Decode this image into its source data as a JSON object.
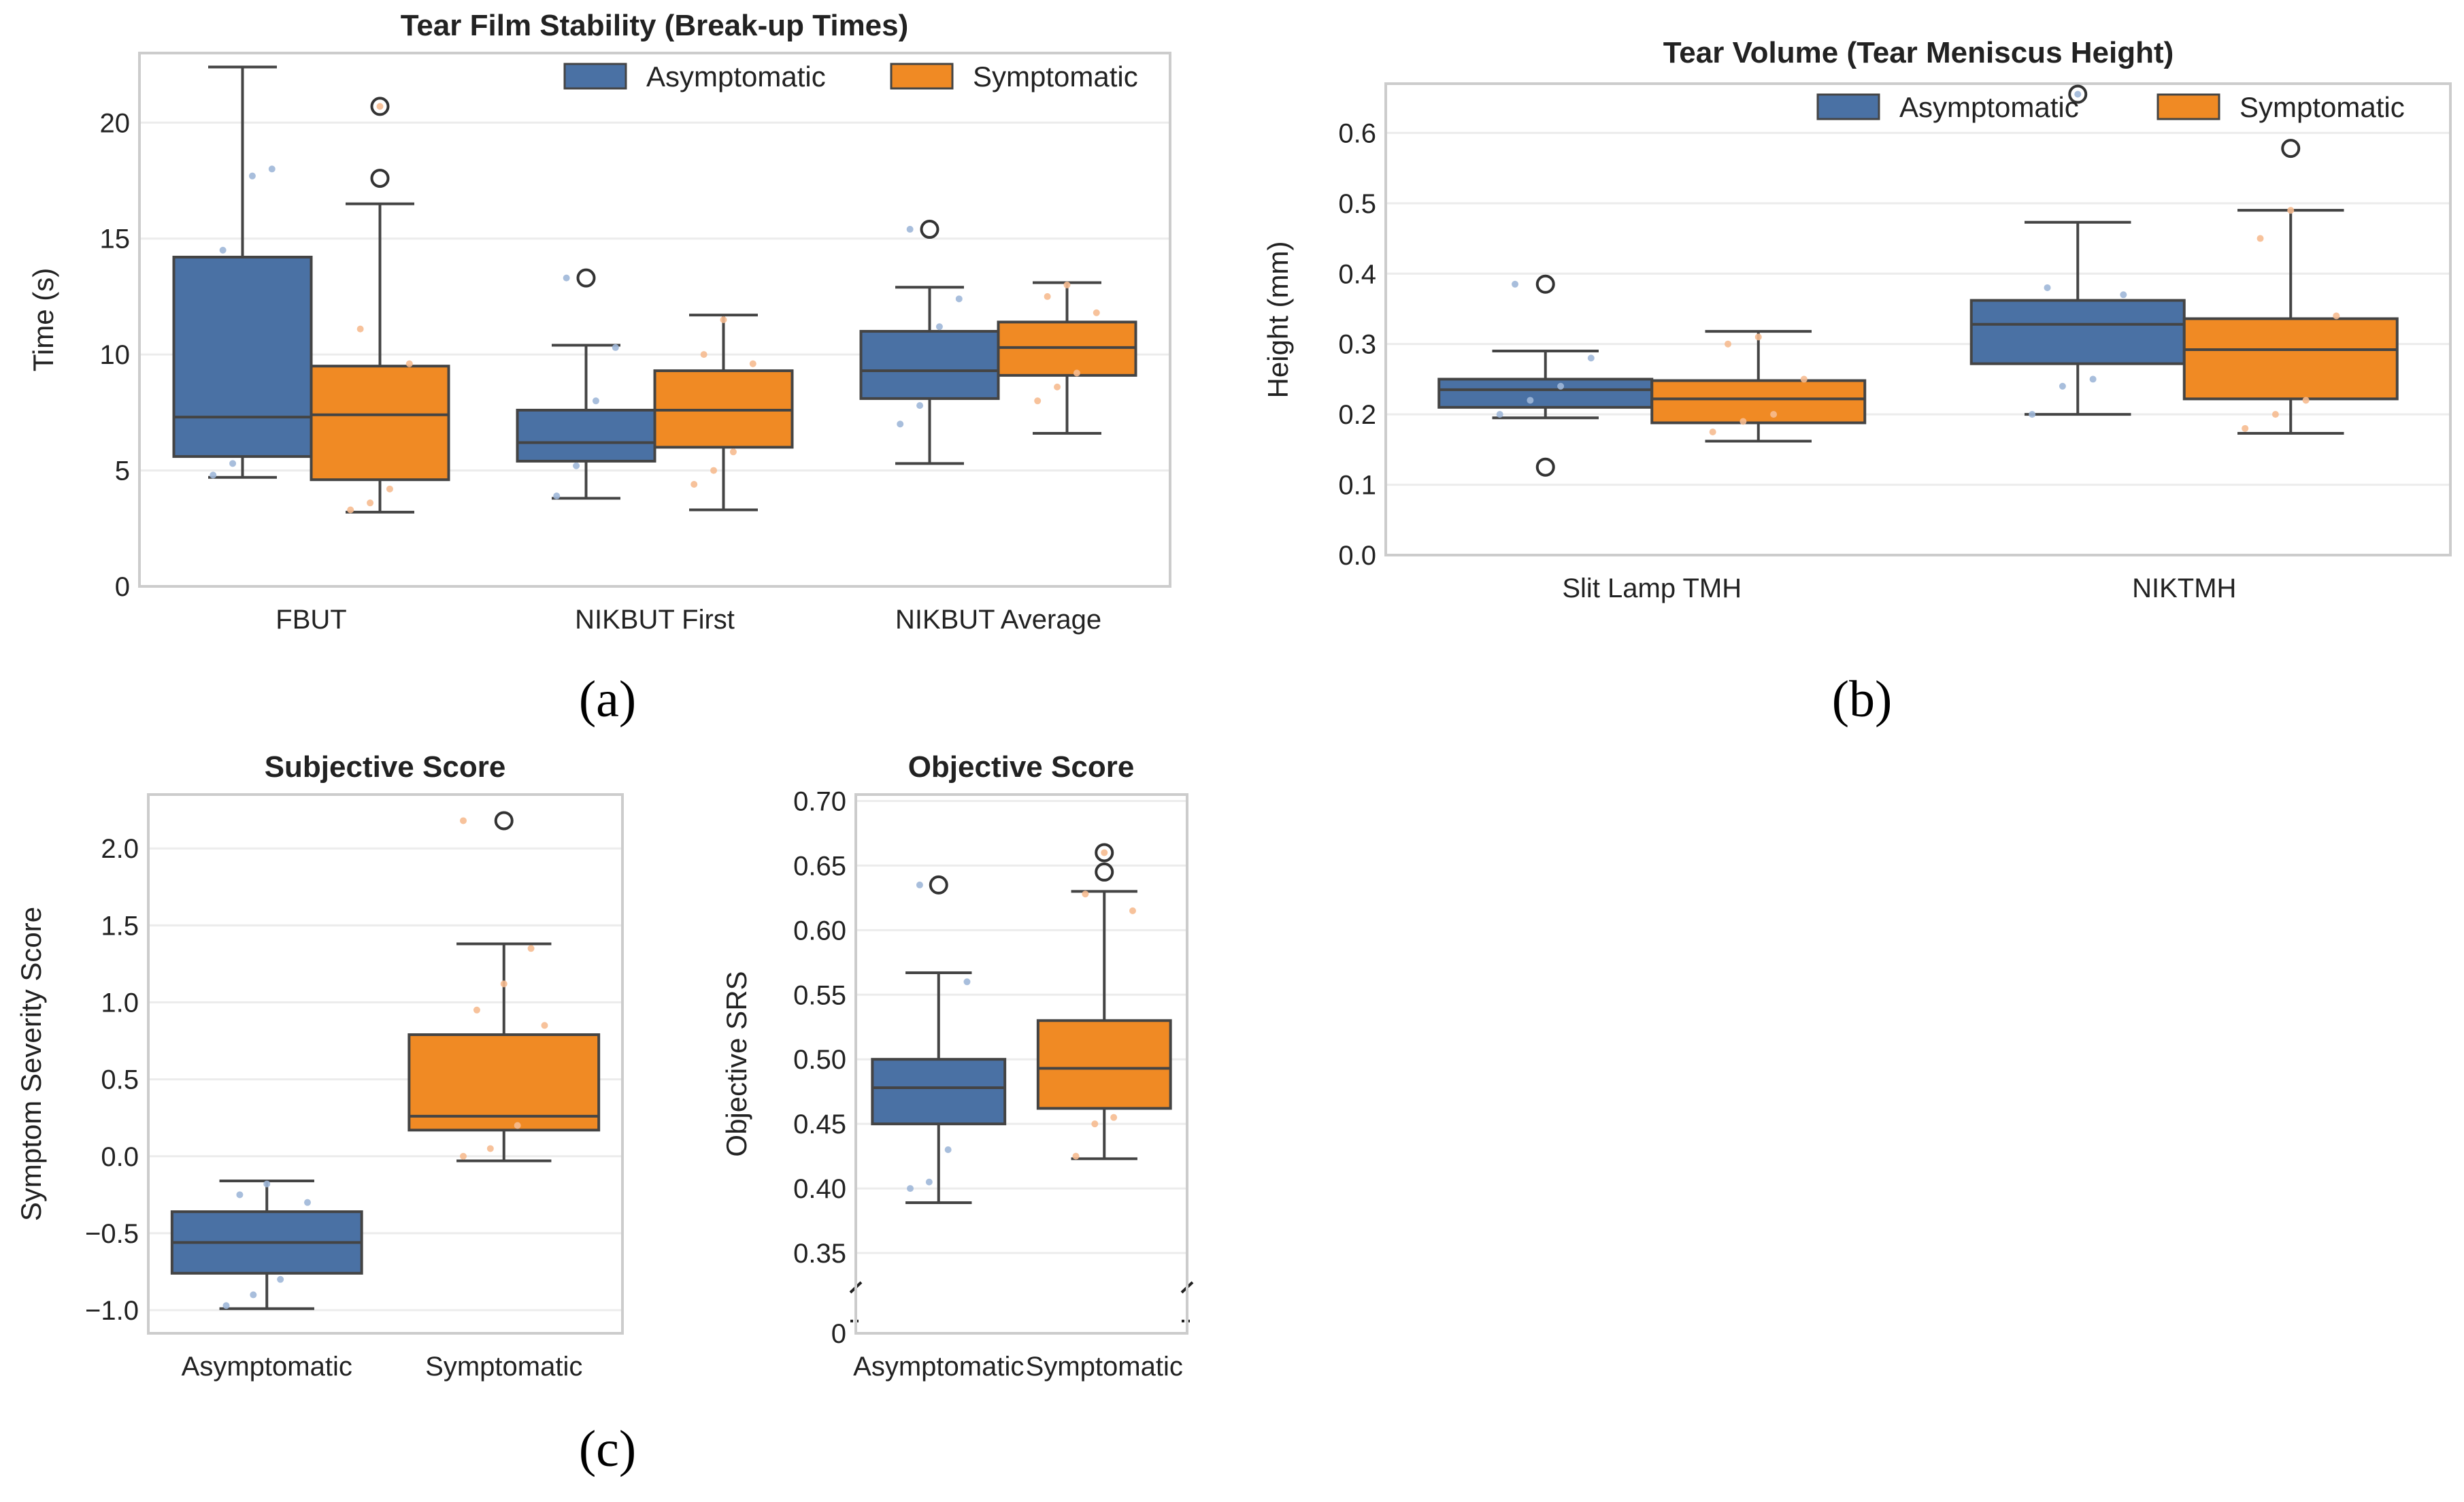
{
  "colors": {
    "asymptomatic": "#4a71a4",
    "symptomatic": "#f08a24",
    "asymptomatic_light": "#9fb7d8",
    "symptomatic_light": "#f6bb90",
    "frame": "#cccccc",
    "grid": "#ececec",
    "whisker": "#444444"
  },
  "chart_data": [
    {
      "id": "a",
      "type": "box",
      "title": "Tear Film Stability (Break-up Times)",
      "xlabel": "",
      "ylabel": "Time (s)",
      "ylim": [
        0,
        23
      ],
      "yticks": [
        0,
        5,
        10,
        15,
        20
      ],
      "yticklabels": [
        "0",
        "5",
        "10",
        "15",
        "20"
      ],
      "grid": true,
      "legend": "top-right",
      "categories": [
        "FBUT",
        "NIKBUT First",
        "NIKBUT Average"
      ],
      "series": [
        {
          "name": "Asymptomatic",
          "boxes": [
            {
              "whislo": 4.7,
              "q1": 5.6,
              "med": 7.3,
              "q3": 14.2,
              "whishi": 22.4,
              "fliers": [],
              "points": [
                4.8,
                5.3,
                17.7,
                18.0,
                14.5
              ]
            },
            {
              "whislo": 3.8,
              "q1": 5.4,
              "med": 6.2,
              "q3": 7.6,
              "whishi": 10.4,
              "fliers": [
                13.3
              ],
              "points": [
                3.9,
                5.2,
                8.0,
                10.3,
                13.3
              ]
            },
            {
              "whislo": 5.3,
              "q1": 8.1,
              "med": 9.3,
              "q3": 11.0,
              "whishi": 12.9,
              "fliers": [
                15.4
              ],
              "points": [
                7.0,
                7.8,
                11.2,
                12.4,
                15.4
              ]
            }
          ]
        },
        {
          "name": "Symptomatic",
          "boxes": [
            {
              "whislo": 3.2,
              "q1": 4.6,
              "med": 7.4,
              "q3": 9.5,
              "whishi": 16.5,
              "fliers": [
                17.6,
                20.7
              ],
              "points": [
                3.3,
                3.6,
                4.2,
                9.6,
                11.1,
                20.7
              ]
            },
            {
              "whislo": 3.3,
              "q1": 6.0,
              "med": 7.6,
              "q3": 9.3,
              "whishi": 11.7,
              "fliers": [],
              "points": [
                4.4,
                5.0,
                5.8,
                9.6,
                10.0,
                11.5
              ]
            },
            {
              "whislo": 6.6,
              "q1": 9.1,
              "med": 10.3,
              "q3": 11.4,
              "whishi": 13.1,
              "fliers": [],
              "points": [
                8.0,
                8.6,
                9.2,
                11.8,
                12.5,
                13.0
              ]
            }
          ]
        }
      ]
    },
    {
      "id": "b",
      "type": "box",
      "title": "Tear Volume (Tear Meniscus Height)",
      "xlabel": "",
      "ylabel": "Height (mm)",
      "ylim": [
        0,
        0.67
      ],
      "yticks": [
        0,
        0.1,
        0.2,
        0.3,
        0.4,
        0.5,
        0.6
      ],
      "yticklabels": [
        "0.0",
        "0.1",
        "0.2",
        "0.3",
        "0.4",
        "0.5",
        "0.6"
      ],
      "grid": true,
      "legend": "top-right",
      "categories": [
        "Slit Lamp TMH",
        "NIKTMH"
      ],
      "series": [
        {
          "name": "Asymptomatic",
          "boxes": [
            {
              "whislo": 0.195,
              "q1": 0.21,
              "med": 0.235,
              "q3": 0.25,
              "whishi": 0.29,
              "fliers": [
                0.125,
                0.385
              ],
              "points": [
                0.2,
                0.22,
                0.24,
                0.28,
                0.385
              ]
            },
            {
              "whislo": 0.2,
              "q1": 0.272,
              "med": 0.328,
              "q3": 0.362,
              "whishi": 0.473,
              "fliers": [
                0.655
              ],
              "points": [
                0.2,
                0.24,
                0.25,
                0.37,
                0.38,
                0.655
              ]
            }
          ]
        },
        {
          "name": "Symptomatic",
          "boxes": [
            {
              "whislo": 0.162,
              "q1": 0.188,
              "med": 0.222,
              "q3": 0.248,
              "whishi": 0.318,
              "fliers": [],
              "points": [
                0.175,
                0.19,
                0.2,
                0.25,
                0.3,
                0.31
              ]
            },
            {
              "whislo": 0.173,
              "q1": 0.222,
              "med": 0.292,
              "q3": 0.336,
              "whishi": 0.49,
              "fliers": [
                0.578
              ],
              "points": [
                0.18,
                0.2,
                0.22,
                0.34,
                0.45,
                0.49
              ]
            }
          ]
        }
      ]
    },
    {
      "id": "c1",
      "type": "box",
      "title": "Subjective Score",
      "xlabel": "",
      "ylabel": "Symptom Severity Score",
      "ylim": [
        -1.15,
        2.35
      ],
      "yticks": [
        -1.0,
        -0.5,
        0.0,
        0.5,
        1.0,
        1.5,
        2.0
      ],
      "yticklabels": [
        "−1.0",
        "−0.5",
        "0.0",
        "0.5",
        "1.0",
        "1.5",
        "2.0"
      ],
      "grid": true,
      "categories": [
        "Asymptomatic",
        "Symptomatic"
      ],
      "series": [
        {
          "name": "",
          "boxes": [
            {
              "group": "Asymptomatic",
              "whislo": -0.99,
              "q1": -0.76,
              "med": -0.56,
              "q3": -0.36,
              "whishi": -0.16,
              "fliers": [],
              "points": [
                -0.97,
                -0.9,
                -0.8,
                -0.3,
                -0.25,
                -0.18
              ]
            },
            {
              "group": "Symptomatic",
              "whislo": -0.03,
              "q1": 0.17,
              "med": 0.26,
              "q3": 0.79,
              "whishi": 1.38,
              "fliers": [
                2.18
              ],
              "points": [
                0.0,
                0.05,
                0.2,
                0.85,
                0.95,
                1.12,
                1.35,
                2.18
              ]
            }
          ]
        }
      ]
    },
    {
      "id": "c2",
      "type": "box",
      "title": "Objective Score",
      "xlabel": "",
      "ylabel": "Objective SRS",
      "ylim": [
        0.33,
        0.705
      ],
      "yticks": [
        0.35,
        0.4,
        0.45,
        0.5,
        0.55,
        0.6,
        0.65,
        0.7
      ],
      "yticklabels": [
        "0.35",
        "0.40",
        "0.45",
        "0.50",
        "0.55",
        "0.60",
        "0.65",
        "0.70"
      ],
      "ybreak_label": "0",
      "grid": true,
      "categories": [
        "Asymptomatic",
        "Symptomatic"
      ],
      "series": [
        {
          "name": "",
          "boxes": [
            {
              "group": "Asymptomatic",
              "whislo": 0.389,
              "q1": 0.45,
              "med": 0.478,
              "q3": 0.5,
              "whishi": 0.567,
              "fliers": [
                0.635
              ],
              "points": [
                0.4,
                0.405,
                0.43,
                0.56,
                0.635
              ]
            },
            {
              "group": "Symptomatic",
              "whislo": 0.423,
              "q1": 0.462,
              "med": 0.493,
              "q3": 0.53,
              "whishi": 0.63,
              "fliers": [
                0.645,
                0.66
              ],
              "points": [
                0.425,
                0.45,
                0.455,
                0.615,
                0.628,
                0.66
              ]
            }
          ]
        }
      ]
    }
  ],
  "captions": {
    "a": "(a)",
    "b": "(b)",
    "c": "(c)"
  }
}
